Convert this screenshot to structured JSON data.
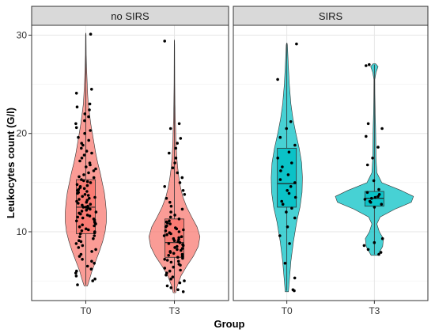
{
  "chart_data": {
    "type": "violin",
    "xlabel": "Group",
    "ylabel": "Leukocytes count (G/l)",
    "y_ticks": [
      10,
      20,
      30
    ],
    "ylim": [
      3,
      31
    ],
    "grid": true,
    "categories": [
      "T0",
      "T3"
    ],
    "panels": [
      {
        "name": "no SIRS",
        "fill": "#f8766d",
        "groups": [
          {
            "label": "T0",
            "box": {
              "q1": 9.8,
              "median": 12.5,
              "q3": 15.3,
              "whisker_low": 4.6,
              "whisker_high": 30.1
            },
            "violin": [
              [
                4.5,
                0.04
              ],
              [
                5,
                0.08
              ],
              [
                6,
                0.15
              ],
              [
                7,
                0.24
              ],
              [
                8,
                0.33
              ],
              [
                9,
                0.41
              ],
              [
                10,
                0.47
              ],
              [
                11,
                0.5
              ],
              [
                12,
                0.5
              ],
              [
                13,
                0.48
              ],
              [
                14,
                0.45
              ],
              [
                15,
                0.4
              ],
              [
                16,
                0.35
              ],
              [
                17,
                0.29
              ],
              [
                18,
                0.24
              ],
              [
                19,
                0.2
              ],
              [
                20,
                0.16
              ],
              [
                21,
                0.12
              ],
              [
                22,
                0.09
              ],
              [
                23,
                0.06
              ],
              [
                24,
                0.045
              ],
              [
                25,
                0.035
              ],
              [
                26,
                0.025
              ],
              [
                27,
                0.015
              ],
              [
                28,
                0.01
              ],
              [
                29,
                0.008
              ],
              [
                30,
                0.006
              ],
              [
                30.2,
                0.002
              ]
            ],
            "points": [
              4.6,
              5,
              5.2,
              5.5,
              5.8,
              6,
              6.2,
              6.5,
              6.8,
              7,
              7.2,
              7.5,
              7.7,
              8,
              8.2,
              8.4,
              8.6,
              8.8,
              9,
              9.1,
              9.3,
              9.5,
              9.6,
              9.8,
              9.9,
              10,
              10.1,
              10.2,
              10.3,
              10.5,
              10.6,
              10.7,
              10.8,
              10.9,
              11,
              11.1,
              11.2,
              11.3,
              11.4,
              11.5,
              11.6,
              11.7,
              11.8,
              11.9,
              12,
              12.1,
              12.2,
              12.3,
              12.4,
              12.5,
              12.5,
              12.6,
              12.7,
              12.8,
              12.9,
              13,
              13.1,
              13.2,
              13.3,
              13.4,
              13.5,
              13.6,
              13.7,
              13.8,
              13.9,
              14,
              14.1,
              14.2,
              14.3,
              14.4,
              14.5,
              14.6,
              14.7,
              14.8,
              15,
              15.1,
              15.2,
              15.3,
              15.5,
              15.6,
              15.8,
              16,
              16.2,
              16.4,
              16.6,
              16.8,
              17,
              17.2,
              17.5,
              17.8,
              18,
              18.2,
              18.5,
              18.8,
              19,
              19.3,
              19.6,
              20,
              20.3,
              20.6,
              21,
              21.3,
              21.7,
              22,
              22.4,
              22.7,
              23,
              24.1,
              24.5,
              30.1
            ]
          },
          {
            "label": "T3",
            "box": {
              "q1": 7.4,
              "median": 8.9,
              "q3": 11.3,
              "whisker_low": 3.9,
              "whisker_high": 29.4
            },
            "violin": [
              [
                3.8,
                0.03
              ],
              [
                4.5,
                0.07
              ],
              [
                5.5,
                0.16
              ],
              [
                6.5,
                0.3
              ],
              [
                7.5,
                0.46
              ],
              [
                8.5,
                0.58
              ],
              [
                9.5,
                0.62
              ],
              [
                10.5,
                0.55
              ],
              [
                11.5,
                0.42
              ],
              [
                12.5,
                0.3
              ],
              [
                13.5,
                0.21
              ],
              [
                14.5,
                0.15
              ],
              [
                15.5,
                0.11
              ],
              [
                16.5,
                0.08
              ],
              [
                17.5,
                0.06
              ],
              [
                18.5,
                0.045
              ],
              [
                19.5,
                0.035
              ],
              [
                20.5,
                0.03
              ],
              [
                21.5,
                0.02
              ],
              [
                23,
                0.013
              ],
              [
                25,
                0.009
              ],
              [
                27,
                0.007
              ],
              [
                29,
                0.005
              ],
              [
                29.5,
                0.002
              ]
            ],
            "points": [
              3.9,
              4.1,
              4.3,
              4.5,
              4.8,
              5,
              5.2,
              5.4,
              5.6,
              5.8,
              6,
              6.1,
              6.3,
              6.4,
              6.6,
              6.7,
              6.9,
              7,
              7.1,
              7.2,
              7.3,
              7.4,
              7.5,
              7.6,
              7.7,
              7.8,
              7.9,
              8,
              8.1,
              8.2,
              8.3,
              8.4,
              8.5,
              8.6,
              8.7,
              8.8,
              8.9,
              9,
              9.1,
              9.2,
              9.3,
              9.4,
              9.5,
              9.6,
              9.7,
              9.8,
              9.9,
              10,
              10.1,
              10.2,
              10.3,
              10.4,
              10.5,
              10.6,
              10.8,
              10.9,
              11,
              11.1,
              11.3,
              11.5,
              11.7,
              12,
              12.3,
              12.6,
              13,
              13.4,
              13.8,
              14.2,
              14.6,
              15,
              15.5,
              16,
              16.5,
              17,
              17.5,
              18,
              18.5,
              19,
              19.5,
              20.5,
              21,
              29.4
            ]
          }
        ]
      },
      {
        "name": "SIRS",
        "fill": "#00bfc4",
        "groups": [
          {
            "label": "T0",
            "box": {
              "q1": 12.5,
              "median": 14.9,
              "q3": 18.5,
              "whisker_low": 4,
              "whisker_high": 29.1
            },
            "violin": [
              [
                3.9,
                0.04
              ],
              [
                5,
                0.06
              ],
              [
                7,
                0.1
              ],
              [
                9,
                0.16
              ],
              [
                11,
                0.24
              ],
              [
                12.5,
                0.32
              ],
              [
                14,
                0.37
              ],
              [
                15.5,
                0.38
              ],
              [
                17,
                0.36
              ],
              [
                18.5,
                0.3
              ],
              [
                20,
                0.22
              ],
              [
                21.5,
                0.15
              ],
              [
                23,
                0.1
              ],
              [
                25,
                0.06
              ],
              [
                27,
                0.035
              ],
              [
                29,
                0.015
              ],
              [
                29.2,
                0.004
              ]
            ],
            "points": [
              4,
              4.1,
              5.3,
              6.8,
              8.8,
              9.6,
              10.5,
              11.4,
              12,
              12.4,
              12.8,
              13.1,
              13.5,
              13.9,
              14.2,
              14.6,
              15,
              15.3,
              15.8,
              16.2,
              16.6,
              17,
              17.5,
              18.1,
              18.8,
              19.6,
              20.5,
              21.2,
              25.5,
              29.1
            ]
          },
          {
            "label": "T3",
            "box": {
              "q1": 12.6,
              "median": 13.4,
              "q3": 14.1,
              "whisker_low": 7.7,
              "whisker_high": 27
            },
            "violin": [
              [
                7.6,
                0.08
              ],
              [
                8.5,
                0.2
              ],
              [
                9.3,
                0.22
              ],
              [
                10,
                0.12
              ],
              [
                10.8,
                0.06
              ],
              [
                11.5,
                0.14
              ],
              [
                12.3,
                0.5
              ],
              [
                13,
                0.9
              ],
              [
                13.6,
                0.95
              ],
              [
                14.2,
                0.65
              ],
              [
                15,
                0.18
              ],
              [
                16,
                0.06
              ],
              [
                17.5,
                0.04
              ],
              [
                19,
                0.035
              ],
              [
                20.5,
                0.03
              ],
              [
                22,
                0.02
              ],
              [
                24,
                0.012
              ],
              [
                25.5,
                0.01
              ],
              [
                26.2,
                0.04
              ],
              [
                26.8,
                0.09
              ],
              [
                27.1,
                0.03
              ]
            ],
            "points": [
              7.7,
              7.9,
              8.2,
              8.6,
              8.9,
              9.3,
              12.5,
              12.8,
              13,
              13.1,
              13.3,
              13.4,
              13.5,
              13.6,
              13.8,
              14,
              14.3,
              15.2,
              16.8,
              17.5,
              18.6,
              19.7,
              20.5,
              21,
              26.9,
              27
            ]
          }
        ]
      }
    ]
  }
}
